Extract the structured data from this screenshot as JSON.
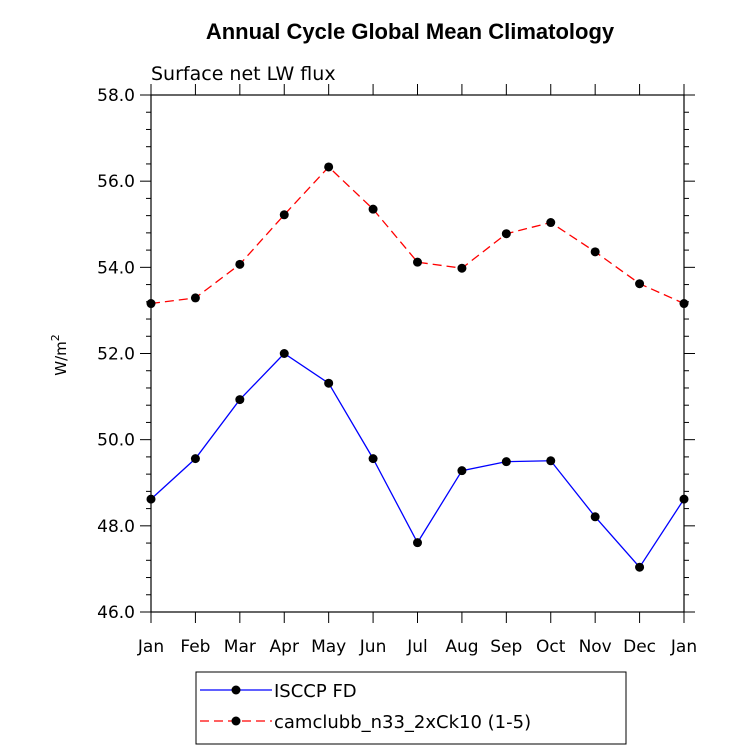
{
  "chart_data": {
    "type": "line",
    "title": "Annual Cycle Global Mean Climatology",
    "subtitle": "Surface net LW flux",
    "ylabel": "W/m",
    "ylabel_sup": "2",
    "xlabel": "",
    "categories": [
      "Jan",
      "Feb",
      "Mar",
      "Apr",
      "May",
      "Jun",
      "Jul",
      "Aug",
      "Sep",
      "Oct",
      "Nov",
      "Dec",
      "Jan"
    ],
    "ylim": [
      46.0,
      58.0
    ],
    "yticks_major": [
      46.0,
      48.0,
      50.0,
      52.0,
      54.0,
      56.0,
      58.0
    ],
    "ytick_labels": [
      "46.0",
      "48.0",
      "50.0",
      "52.0",
      "54.0",
      "56.0",
      "58.0"
    ],
    "grid": false,
    "legend_position": "bottom",
    "series": [
      {
        "name": "ISCCP FD",
        "color": "#0000ff",
        "dash": "solid",
        "values": [
          48.62,
          49.56,
          50.93,
          52.0,
          51.31,
          49.56,
          47.61,
          49.28,
          49.49,
          49.51,
          48.21,
          47.04,
          48.62
        ]
      },
      {
        "name": "camclubb_n33_2xCk10 (1-5)",
        "color": "#ff0000",
        "dash": "dashed",
        "values": [
          53.16,
          53.29,
          54.07,
          55.22,
          56.33,
          55.35,
          54.12,
          53.98,
          54.78,
          55.04,
          54.36,
          53.62,
          53.16
        ]
      }
    ]
  }
}
